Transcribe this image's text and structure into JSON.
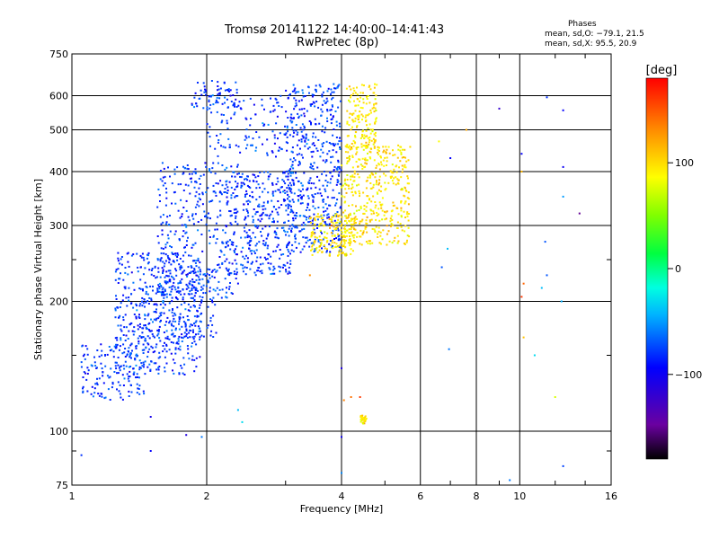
{
  "header": {
    "title": "Tromsø 20141122 14:40:00–14:41:43",
    "subtitle": "RwPretec (8p)"
  },
  "stats": {
    "heading": "Phases",
    "line_o": "mean, sd,O: −79.1, 21.5",
    "line_x": "mean, sd,X:  95.5, 20.9"
  },
  "colorbar": {
    "unit_label": "[deg]",
    "range": [
      -180,
      180
    ],
    "ticks": [
      100,
      0,
      -100
    ],
    "tick_labels": [
      "100",
      "0",
      "−100"
    ]
  },
  "chart_data": {
    "type": "scatter",
    "title": "Tromsø 20141122 14:40:00–14:41:43",
    "subtitle": "RwPretec (8p)",
    "xlabel": "Frequency [MHz]",
    "ylabel": "Stationary phase Virtual Height [km]",
    "x_scale": "log",
    "y_scale": "log",
    "xlim": [
      1,
      16
    ],
    "ylim": [
      75,
      750
    ],
    "grid": true,
    "x_ticks": [
      1,
      2,
      4,
      6,
      8,
      10,
      16
    ],
    "x_tick_labels": [
      "1",
      "2",
      "4",
      "6",
      "8",
      "10",
      "16"
    ],
    "y_ticks": [
      75,
      100,
      200,
      300,
      400,
      500,
      600,
      750
    ],
    "y_tick_labels": [
      "75",
      "100",
      "200",
      "300",
      "400",
      "500",
      "600",
      "750"
    ],
    "color_variable": "phase [deg]",
    "series": [
      {
        "mode": "O",
        "phase_mean": -79.1,
        "phase_sd": 21.5,
        "clusters": [
          {
            "f": [
              1.05,
              1.45
            ],
            "h": [
              118,
              160
            ],
            "n": 140
          },
          {
            "f": [
              1.25,
              1.95
            ],
            "h": [
              135,
              260
            ],
            "n": 480
          },
          {
            "f": [
              1.55,
              2.35
            ],
            "h": [
              200,
              420
            ],
            "n": 360
          },
          {
            "f": [
              1.85,
              2.4
            ],
            "h": [
              560,
              650
            ],
            "n": 70
          },
          {
            "f": [
              2.2,
              3.1
            ],
            "h": [
              230,
              400
            ],
            "n": 360
          },
          {
            "f": [
              3.0,
              4.0
            ],
            "h": [
              260,
              640
            ],
            "n": 520
          },
          {
            "f": [
              2.0,
              3.0
            ],
            "h": [
              430,
              600
            ],
            "n": 110
          },
          {
            "f": [
              1.4,
              2.1
            ],
            "h": [
              160,
              240
            ],
            "n": 150
          }
        ],
        "points": [
          {
            "f": 1.05,
            "h": 88,
            "phase": -80
          },
          {
            "f": 1.5,
            "h": 90,
            "phase": -95
          },
          {
            "f": 1.5,
            "h": 108,
            "phase": -105
          },
          {
            "f": 1.8,
            "h": 98,
            "phase": -110
          },
          {
            "f": 1.95,
            "h": 97,
            "phase": -60
          },
          {
            "f": 2.35,
            "h": 112,
            "phase": -40
          },
          {
            "f": 2.4,
            "h": 105,
            "phase": -30
          },
          {
            "f": 4.0,
            "h": 97,
            "phase": -100
          },
          {
            "f": 4.0,
            "h": 80,
            "phase": -55
          },
          {
            "f": 4.0,
            "h": 140,
            "phase": -110
          },
          {
            "f": 6.9,
            "h": 265,
            "phase": -40
          },
          {
            "f": 6.7,
            "h": 240,
            "phase": -70
          },
          {
            "f": 6.95,
            "h": 155,
            "phase": -60
          },
          {
            "f": 10.1,
            "h": 440,
            "phase": -95
          },
          {
            "f": 10.8,
            "h": 150,
            "phase": -30
          },
          {
            "f": 12.4,
            "h": 200,
            "phase": -45
          },
          {
            "f": 12.5,
            "h": 555,
            "phase": -95
          },
          {
            "f": 12.5,
            "h": 410,
            "phase": -100
          },
          {
            "f": 12.5,
            "h": 350,
            "phase": -50
          },
          {
            "f": 12.5,
            "h": 83,
            "phase": -75
          },
          {
            "f": 11.4,
            "h": 275,
            "phase": -70
          },
          {
            "f": 13.6,
            "h": 320,
            "phase": -150
          },
          {
            "f": 11.5,
            "h": 595,
            "phase": -80
          },
          {
            "f": 9.0,
            "h": 560,
            "phase": -120
          },
          {
            "f": 7.0,
            "h": 430,
            "phase": -95
          },
          {
            "f": 9.5,
            "h": 77,
            "phase": -60
          },
          {
            "f": 11.2,
            "h": 215,
            "phase": -40
          },
          {
            "f": 11.5,
            "h": 230,
            "phase": -70
          }
        ]
      },
      {
        "mode": "X",
        "phase_mean": 95.5,
        "phase_sd": 20.9,
        "clusters": [
          {
            "f": [
              3.4,
              4.3
            ],
            "h": [
              255,
              320
            ],
            "n": 180
          },
          {
            "f": [
              4.0,
              5.7
            ],
            "h": [
              270,
              460
            ],
            "n": 420
          },
          {
            "f": [
              4.1,
              4.8
            ],
            "h": [
              450,
              640
            ],
            "n": 160
          },
          {
            "f": [
              4.4,
              4.55
            ],
            "h": [
              104,
              109
            ],
            "n": 25
          }
        ],
        "points": [
          {
            "f": 4.05,
            "h": 118,
            "phase": 135
          },
          {
            "f": 4.2,
            "h": 120,
            "phase": 140
          },
          {
            "f": 4.4,
            "h": 120,
            "phase": 160
          },
          {
            "f": 7.6,
            "h": 500,
            "phase": 120
          },
          {
            "f": 10.1,
            "h": 400,
            "phase": 115
          },
          {
            "f": 10.2,
            "h": 220,
            "phase": 145
          },
          {
            "f": 10.1,
            "h": 205,
            "phase": 160
          },
          {
            "f": 10.2,
            "h": 165,
            "phase": 110
          },
          {
            "f": 12.0,
            "h": 120,
            "phase": 75
          },
          {
            "f": 6.6,
            "h": 470,
            "phase": 85
          },
          {
            "f": 3.8,
            "h": 300,
            "phase": 150
          },
          {
            "f": 3.4,
            "h": 230,
            "phase": 130
          }
        ]
      }
    ]
  }
}
